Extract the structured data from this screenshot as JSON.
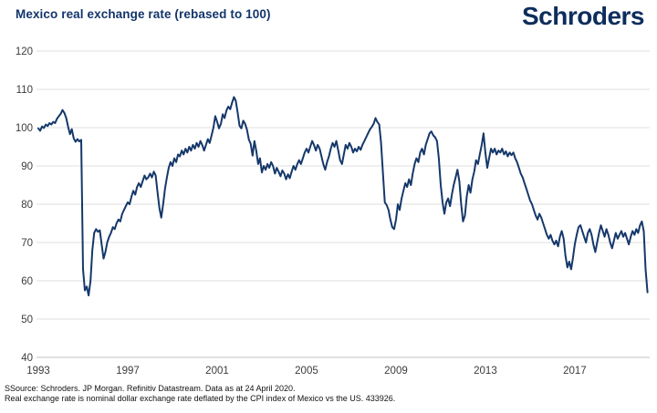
{
  "header": {
    "logo": "Schroders"
  },
  "footer": {
    "line1": "SSource: Schroders. JP Morgan. Refinitiv Datastream. Data as at 24 April 2020.",
    "line2": "Real exchange rate is nominal dollar exchange rate deflated by the CPI index of Mexico vs the US. 433926."
  },
  "colors": {
    "title_navy": "#13356b",
    "logo_navy": "#0d2d5c",
    "line_navy": "#15386b",
    "gridline": "#eaeaea",
    "axis_line": "#d5d5d5",
    "tick_label": "#3c3c3c"
  },
  "chart_data": {
    "type": "line",
    "title": "Mexico real exchange rate (rebased to 100)",
    "xlabel": "",
    "ylabel": "",
    "ylim": [
      40,
      120
    ],
    "xlim": [
      1993.0,
      2020.35
    ],
    "y_ticks": [
      40,
      50,
      60,
      70,
      80,
      90,
      100,
      110,
      120
    ],
    "x_ticks": [
      1993,
      1997,
      2001,
      2005,
      2009,
      2013,
      2017
    ],
    "grid": "horizontal-only",
    "legend": "none",
    "series_name": "Mexico real exchange rate (rebased to 100)",
    "x_start": 1993.0,
    "x_step_years": 0.0833333,
    "values": [
      99.8,
      99.2,
      100.3,
      99.9,
      100.8,
      100.4,
      101.2,
      100.8,
      101.5,
      101.2,
      102.3,
      103.0,
      103.6,
      104.6,
      103.8,
      102.5,
      100.2,
      98.3,
      99.6,
      97.2,
      96.3,
      97.0,
      96.4,
      96.8,
      63.0,
      57.5,
      58.5,
      56.2,
      60.0,
      68.0,
      72.5,
      73.5,
      72.8,
      73.2,
      69.5,
      65.8,
      67.5,
      70.0,
      71.5,
      72.5,
      74.0,
      73.5,
      75.0,
      76.0,
      75.5,
      77.5,
      78.5,
      79.5,
      80.5,
      80.0,
      82.0,
      83.5,
      82.5,
      84.5,
      85.5,
      84.5,
      86.0,
      87.5,
      86.5,
      87.0,
      88.0,
      87.0,
      88.5,
      87.5,
      83.0,
      79.0,
      76.5,
      80.0,
      84.0,
      87.0,
      89.5,
      91.0,
      90.0,
      92.0,
      91.0,
      93.0,
      92.5,
      94.0,
      93.0,
      94.5,
      93.5,
      95.0,
      94.0,
      95.5,
      94.5,
      96.0,
      95.0,
      96.5,
      95.5,
      94.0,
      95.5,
      97.0,
      96.0,
      98.0,
      100.0,
      103.0,
      101.5,
      99.8,
      101.0,
      103.5,
      102.5,
      104.5,
      105.5,
      104.8,
      106.5,
      108.0,
      107.0,
      104.0,
      100.5,
      99.8,
      101.8,
      101.0,
      99.5,
      96.9,
      95.8,
      92.7,
      96.5,
      94.0,
      90.5,
      92.0,
      88.3,
      90.0,
      89.0,
      90.5,
      89.5,
      91.0,
      90.0,
      88.0,
      89.5,
      88.5,
      87.3,
      88.8,
      88.0,
      86.5,
      87.8,
      86.8,
      88.5,
      90.0,
      89.0,
      90.5,
      91.5,
      90.5,
      92.0,
      93.5,
      94.5,
      93.5,
      95.0,
      96.5,
      95.5,
      94.0,
      95.5,
      94.5,
      92.5,
      90.5,
      89.0,
      91.0,
      92.5,
      94.5,
      96.0,
      95.0,
      96.5,
      94.0,
      91.5,
      90.5,
      93.0,
      95.5,
      94.5,
      96.0,
      95.0,
      93.5,
      94.5,
      93.8,
      95.0,
      94.2,
      95.5,
      96.5,
      97.5,
      98.5,
      99.5,
      100.2,
      101.0,
      102.5,
      101.5,
      100.8,
      96.0,
      88.0,
      80.5,
      79.8,
      78.5,
      76.0,
      74.0,
      73.5,
      76.0,
      80.0,
      78.5,
      81.5,
      83.5,
      85.5,
      84.5,
      86.5,
      85.0,
      88.0,
      90.5,
      92.0,
      91.0,
      93.5,
      94.5,
      93.0,
      95.5,
      97.0,
      98.5,
      99.0,
      98.0,
      97.5,
      96.5,
      92.0,
      85.0,
      80.5,
      77.5,
      80.5,
      81.5,
      79.5,
      82.5,
      85.0,
      87.0,
      89.0,
      86.0,
      80.0,
      75.5,
      77.0,
      82.0,
      85.0,
      83.0,
      86.5,
      88.5,
      91.5,
      90.5,
      93.0,
      95.5,
      98.5,
      93.5,
      89.5,
      92.0,
      94.5,
      93.5,
      94.5,
      93.0,
      94.0,
      93.5,
      94.5,
      93.0,
      93.8,
      92.5,
      93.5,
      92.8,
      93.5,
      92.0,
      91.0,
      89.5,
      88.0,
      87.0,
      85.5,
      84.0,
      82.5,
      81.0,
      80.0,
      78.5,
      77.0,
      76.0,
      77.5,
      76.5,
      75.0,
      73.5,
      72.0,
      71.0,
      72.0,
      70.5,
      69.5,
      70.5,
      69.0,
      71.5,
      73.0,
      71.0,
      66.5,
      63.5,
      65.0,
      63.0,
      66.0,
      69.5,
      72.0,
      74.0,
      74.5,
      73.0,
      71.5,
      70.0,
      72.5,
      73.5,
      72.0,
      69.5,
      67.5,
      70.0,
      72.5,
      74.5,
      73.0,
      71.5,
      73.5,
      72.0,
      70.0,
      68.5,
      70.5,
      72.5,
      71.0,
      72.0,
      73.0,
      71.5,
      72.5,
      71.0,
      69.5,
      71.5,
      73.0,
      72.0,
      73.5,
      72.5,
      74.5,
      75.5,
      73.0,
      63.0,
      57.0
    ]
  }
}
